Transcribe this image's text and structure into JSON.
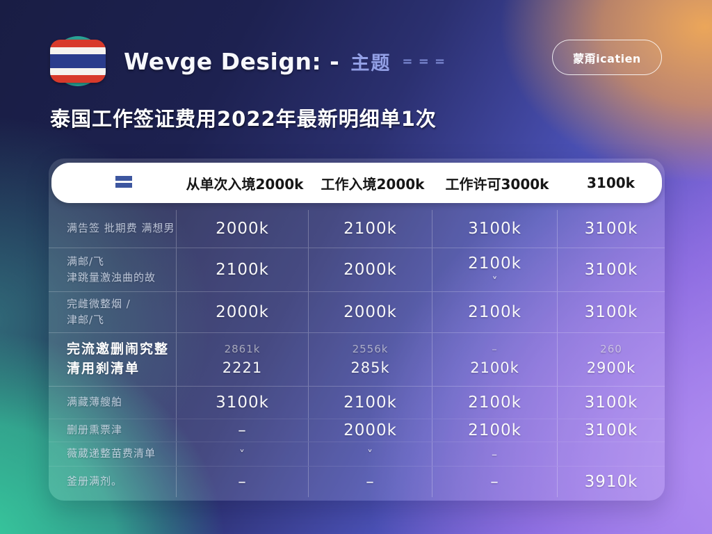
{
  "header": {
    "brand": "Wevge Design: -",
    "brand_suffix": "主题",
    "menu_dots": "= = =",
    "action_button": "蒙甭icatien"
  },
  "page_title": "泰国工作签证费用2022年最新明细单1次",
  "colors": {
    "background_navy": "#1b1f48",
    "background_orange": "#e8a45c",
    "background_teal": "#3ec9a0",
    "background_blue": "#4a54c8",
    "background_purple": "#9a79e2",
    "header_bar": "#ffffff",
    "flag_red": "#d83a2b",
    "flag_navy": "#2a3c8c",
    "flag_circle_teal": "#2aa295"
  },
  "table": {
    "icons": {
      "logo": "table-logo-glyph",
      "chevron": "˅"
    },
    "columns": [
      "从单次入境2000k",
      "工作入境2000k",
      "工作许可3000k",
      "3100k"
    ],
    "rows": [
      {
        "label": [
          "满告签 批期费 满想男"
        ],
        "values": [
          "2000k",
          "2100k",
          "3100k",
          "3100k"
        ]
      },
      {
        "label": [
          "满邮/飞",
          "津跳量激浊曲的故"
        ],
        "values": [
          "2100k",
          "2000k",
          "2100k",
          "3100k"
        ],
        "chevron_col": 2
      },
      {
        "label": [
          "完雌微整烟 /",
          "津邮/飞"
        ],
        "values": [
          "2000k",
          "2000k",
          "2100k",
          "3100k"
        ]
      },
      {
        "label": [
          "完流邀删闹究整",
          "清用刹清单"
        ],
        "bright": true,
        "sub_rows": [
          [
            "2861k",
            "2556k",
            "–",
            "260"
          ],
          [
            "2221",
            "285k",
            "2100k",
            "2900k"
          ]
        ]
      },
      {
        "label": [
          "满藏薄艘舶"
        ],
        "values": [
          "3100k",
          "2100k",
          "2100k",
          "3100k"
        ]
      },
      {
        "label": [
          "删册熏票津"
        ],
        "values": [
          "–",
          "2000k",
          "2100k",
          "3100k"
        ]
      },
      {
        "label": [
          "薇葳递整苗费清单"
        ],
        "values": [
          "˅",
          "˅",
          "–",
          ""
        ],
        "muted": true
      },
      {
        "label": [
          "釜册满剂。"
        ],
        "values": [
          "–",
          "–",
          "–",
          "3910k"
        ]
      }
    ]
  }
}
